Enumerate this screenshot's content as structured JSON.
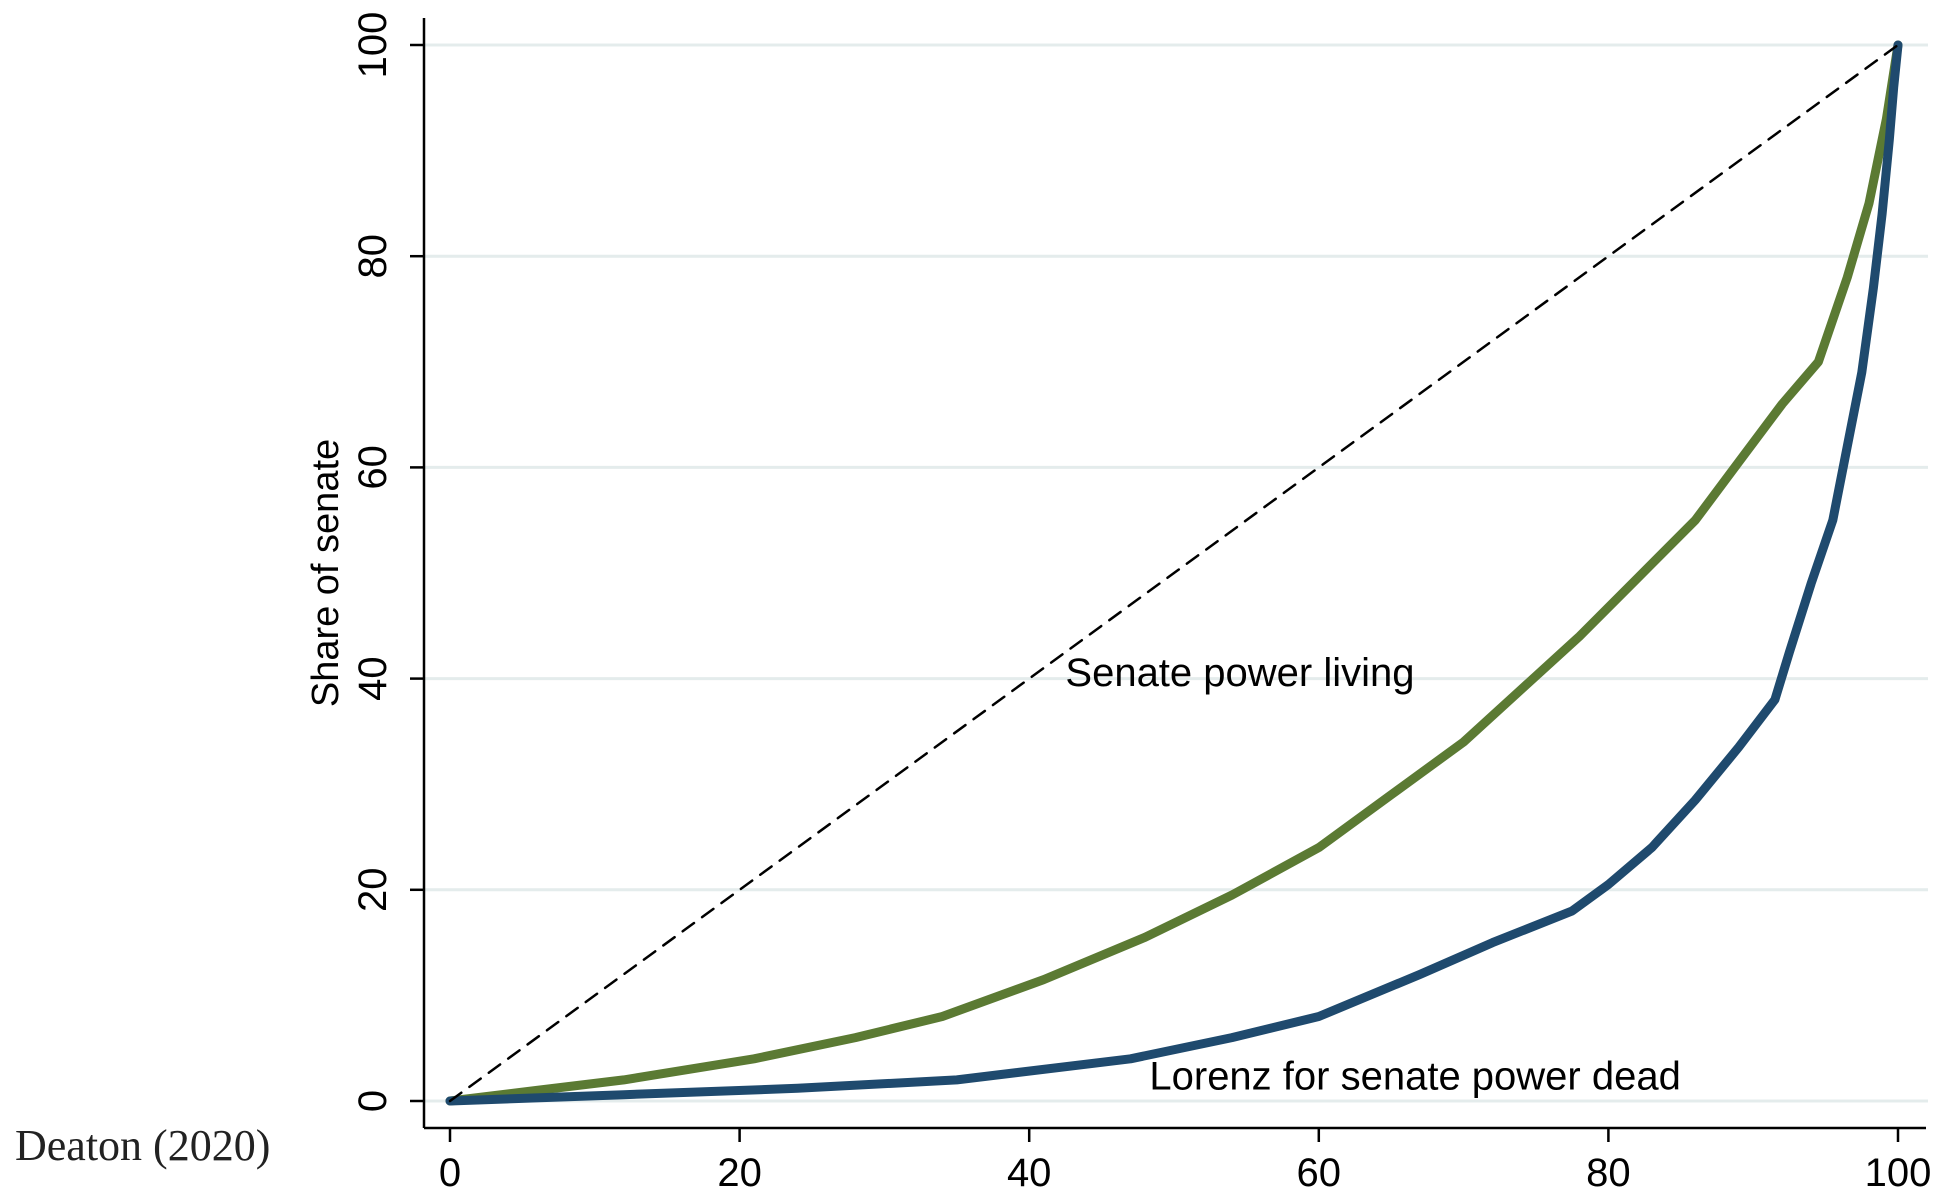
{
  "credit": "Deaton (2020)",
  "chart_data": {
    "type": "line",
    "title": "",
    "xlabel": "",
    "ylabel": "Share of senate",
    "xlim": [
      0,
      100
    ],
    "ylim": [
      0,
      100
    ],
    "xticks": [
      "0",
      "20",
      "40",
      "60",
      "80",
      "100"
    ],
    "yticks": [
      "0",
      "20",
      "40",
      "60",
      "80",
      "100"
    ],
    "grid": "horizontal",
    "annotations": [
      {
        "text": "Senate power living",
        "x": 42.5,
        "y": 39.3
      },
      {
        "text": "Lorenz for senate power dead",
        "x": 48.3,
        "y": 1.1
      }
    ],
    "series": [
      {
        "name": "Senate power living",
        "color": "#5b7a33",
        "x": [
          0,
          6,
          12,
          21,
          28,
          34,
          41,
          48,
          54,
          60,
          65,
          70,
          74,
          78,
          82,
          86,
          89,
          92,
          94.5,
          96.5,
          98,
          99.2,
          100
        ],
        "y": [
          0,
          1,
          2,
          4,
          6,
          8,
          11.5,
          15.5,
          19.5,
          24,
          29,
          34,
          39,
          44,
          49.5,
          55,
          60.5,
          66,
          70,
          78,
          85,
          93,
          100
        ]
      },
      {
        "name": "Lorenz for senate power dead",
        "color": "#1f4a6e",
        "x": [
          0,
          12,
          24,
          35,
          47,
          54,
          60,
          67,
          72,
          77.5,
          80,
          83,
          86,
          89,
          91.5,
          92.5,
          94,
          95.5,
          96.5,
          97.5,
          98.3,
          98.9,
          99.4,
          99.7,
          100
        ],
        "y": [
          0,
          0.6,
          1.2,
          2,
          4,
          6,
          8,
          12,
          15,
          18,
          20.5,
          24,
          28.5,
          33.5,
          38,
          42.5,
          49,
          55,
          62,
          69,
          77,
          84,
          91,
          96,
          100
        ]
      },
      {
        "name": "",
        "color": "#000000",
        "dashed": true,
        "x": [
          0,
          100
        ],
        "y": [
          0,
          100
        ]
      }
    ]
  }
}
